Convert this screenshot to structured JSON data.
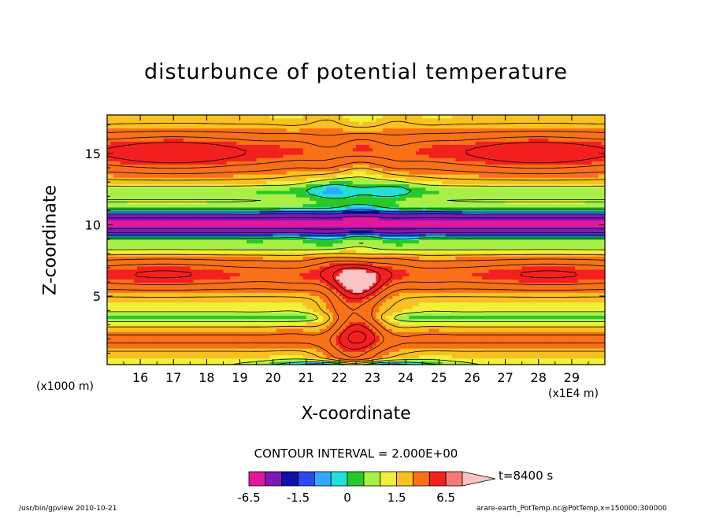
{
  "chart_data": {
    "type": "heatmap",
    "title": "disturbunce of potential temperature",
    "xlabel": "X-coordinate",
    "ylabel": "Z-coordinate",
    "x_unit": "(x1E4 m)",
    "y_unit": "(x1000 m)",
    "xlim": [
      15.0,
      30.0
    ],
    "ylim": [
      0.2,
      17.7
    ],
    "x_ticks": [
      "16",
      "17",
      "18",
      "19",
      "20",
      "21",
      "22",
      "23",
      "24",
      "25",
      "26",
      "27",
      "28",
      "29"
    ],
    "y_ticks": [
      "5",
      "10",
      "15"
    ],
    "contour_interval": "CONTOUR INTERVAL = 2.000E+00",
    "time_label": "t=8400 s",
    "colorbar": {
      "levels": [
        -6.5,
        -4.5,
        -2.5,
        -1.5,
        -1.0,
        -0.5,
        0,
        0.5,
        1.0,
        1.5,
        2.5,
        4.5,
        6.5
      ],
      "colors": [
        "#e0199c",
        "#8018b8",
        "#1010a8",
        "#2a4af0",
        "#30a8ff",
        "#20e0d8",
        "#28c828",
        "#a8f048",
        "#f0f038",
        "#f8c020",
        "#f87018",
        "#f42020",
        "#f87878"
      ],
      "over_color": "#f8c4c4",
      "tick_labels": [
        "-6.5",
        "-1.5",
        "0",
        "1.5",
        "6.5"
      ],
      "tick_values": [
        -6.5,
        -1.5,
        0,
        1.5,
        6.5
      ]
    }
  },
  "footer": {
    "left": "/usr/bin/gpview   2010-10-21",
    "right": "arare-earth_PotTemp.nc@PotTemp,x=150000:300000"
  }
}
